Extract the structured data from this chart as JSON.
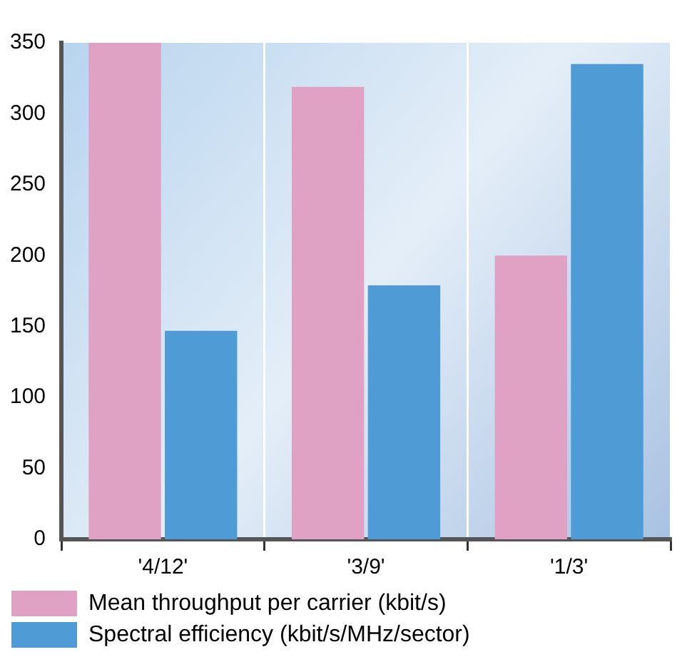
{
  "chart_data": {
    "type": "bar",
    "categories": [
      "'4/12'",
      "'3/9'",
      "'1/3'"
    ],
    "series": [
      {
        "name": "Mean throughput per carrier (kbit/s)",
        "color": "#dfa2c4",
        "values": [
          350,
          319,
          200
        ]
      },
      {
        "name": "Spectral efficiency (kbit/s/MHz/sector)",
        "color": "#4f9bd6",
        "values": [
          147,
          179,
          335
        ]
      }
    ],
    "ylim": [
      0,
      350
    ],
    "yticks": [
      0,
      50,
      100,
      150,
      200,
      250,
      300,
      350
    ],
    "grid": "x",
    "legend": "bottom left"
  }
}
